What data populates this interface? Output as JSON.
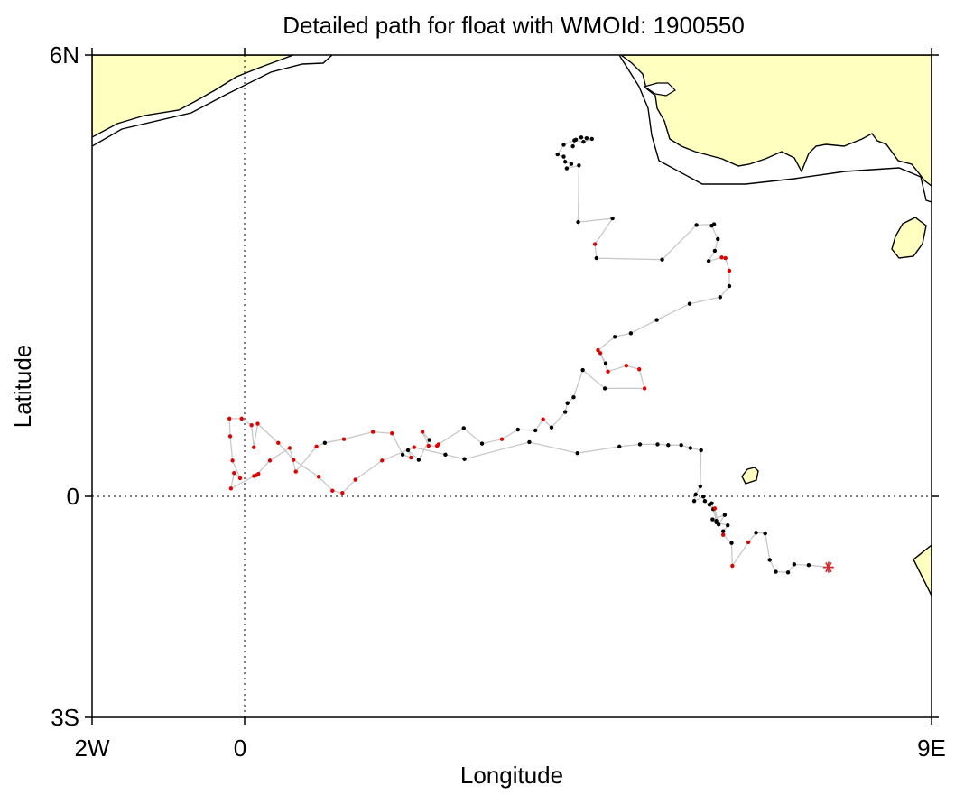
{
  "chart_data": {
    "type": "scatter",
    "title": "Detailed path for float with WMOId: 1900550",
    "xlabel": "Longitude",
    "ylabel": "Latitude",
    "xlim": [
      -2,
      9
    ],
    "ylim": [
      -3,
      6
    ],
    "x_ticks": [
      {
        "value": -2,
        "label": "2W"
      },
      {
        "value": 0,
        "label": "0"
      },
      {
        "value": 9,
        "label": "9E"
      }
    ],
    "y_ticks": [
      {
        "value": 6,
        "label": "6N"
      },
      {
        "value": 0,
        "label": "0"
      },
      {
        "value": -3,
        "label": "3S"
      }
    ],
    "reference_lines": [
      {
        "axis": "x",
        "value": 0,
        "style": "dotted"
      },
      {
        "axis": "y",
        "value": 0,
        "style": "dotted"
      }
    ],
    "colors": {
      "land": "#ffffc0",
      "track": "#c8c8c8",
      "point_black": "#000000",
      "point_red": "#e00000",
      "last_position": "#d03030"
    },
    "last_position": {
      "lon": 7.65,
      "lat": -0.96,
      "marker": "asterisk"
    },
    "series": [
      {
        "lon": [
          4.3,
          4.34,
          4.41,
          4.48,
          4.55,
          4.44,
          4.32,
          4.18,
          4.1,
          4.18,
          4.2,
          4.28,
          4.22,
          4.38,
          4.37,
          4.82,
          4.59,
          4.61,
          5.47,
          5.92,
          6.15,
          6.12,
          6.2,
          6.16,
          6.08,
          6.25,
          6.3,
          6.35,
          6.35,
          6.23,
          5.83,
          5.4,
          5.06,
          4.85,
          4.63,
          4.73,
          4.66,
          4.76,
          5,
          5.17,
          5.24,
          4.72,
          4.43,
          4.31,
          4.23,
          4.2,
          4.02,
          3.91,
          3.81,
          3.58,
          3.37,
          3.11,
          2.87,
          2.54,
          2.52,
          2.41,
          2.33,
          2.42,
          2.28,
          2.14,
          2.18,
          2.07,
          1.93,
          1.68,
          1.3,
          1.05,
          0.94,
          0.67,
          0.59,
          0.33,
          0.15,
          0.12,
          0.18,
          -0.18,
          -0.14,
          -0.06,
          -0.16,
          -0.19,
          -0.2,
          -0.04,
          0.09,
          0.12,
          0.17,
          0.44,
          0.64,
          0.97,
          1.15,
          1.28,
          1.45,
          1.8,
          2.22,
          2.63,
          2.88,
          3.73,
          4.36,
          4.91,
          5.18,
          5.41,
          5.55,
          5.72,
          5.84,
          5.98,
          5.97,
          5.91,
          5.89,
          6.01,
          6.03,
          6.09,
          6.14,
          6.12,
          6.18,
          6.16,
          6.21,
          6.29,
          6.13,
          6.18,
          6.33,
          6.27,
          6.27,
          6.38,
          6.39,
          6.6,
          6.7,
          6.82,
          6.88,
          6.96,
          7.12,
          7.2,
          7.39,
          7.65
        ],
        "lat": [
          4.76,
          4.85,
          4.88,
          4.87,
          4.86,
          4.82,
          4.84,
          4.78,
          4.65,
          4.62,
          4.55,
          4.52,
          4.46,
          4.5,
          3.73,
          3.78,
          3.43,
          3.24,
          3.22,
          3.69,
          3.7,
          3.68,
          3.5,
          3.34,
          3.2,
          3.25,
          3.24,
          3.07,
          2.86,
          2.71,
          2.62,
          2.4,
          2.22,
          2.17,
          1.99,
          1.81,
          1.95,
          1.7,
          1.78,
          1.73,
          1.47,
          1.47,
          1.72,
          1.35,
          1.27,
          1.15,
          0.94,
          1.05,
          0.9,
          0.91,
          0.78,
          0.72,
          0.93,
          0.71,
          0.69,
          0.69,
          0.88,
          0.77,
          0.5,
          0.63,
          0.53,
          0.57,
          0.86,
          0.88,
          0.78,
          0.73,
          0.68,
          0.34,
          0.66,
          0.49,
          0.29,
          0.28,
          0.31,
          0.11,
          0.32,
          0.25,
          0.49,
          0.82,
          1.06,
          1.06,
          0.97,
          0.67,
          0.99,
          0.73,
          0.5,
          0.27,
          0.08,
          0.05,
          0.23,
          0.49,
          0.67,
          0.57,
          0.51,
          0.74,
          0.59,
          0.68,
          0.71,
          0.71,
          0.7,
          0.7,
          0.66,
          0.63,
          0.14,
          0.03,
          -0.06,
          0,
          -0.06,
          -0.11,
          -0.17,
          -0.09,
          -0.33,
          -0.16,
          -0.38,
          -0.25,
          -0.31,
          -0.35,
          -0.39,
          -0.47,
          -0.52,
          -0.63,
          -0.94,
          -0.62,
          -0.49,
          -0.5,
          -0.86,
          -1.02,
          -1.03,
          -0.92,
          -0.93,
          -0.96
        ],
        "marker_color": [
          "black",
          "black",
          "black",
          "black",
          "black",
          "black",
          "black",
          "black",
          "black",
          "black",
          "black",
          "black",
          "black",
          "black",
          "black",
          "black",
          "red",
          "black",
          "black",
          "black",
          "black",
          "black",
          "black",
          "black",
          "black",
          "red",
          "red",
          "red",
          "black",
          "black",
          "black",
          "black",
          "black",
          "black",
          "red",
          "black",
          "red",
          "red",
          "red",
          "red",
          "red",
          "black",
          "black",
          "black",
          "black",
          "black",
          "black",
          "red",
          "black",
          "black",
          "red",
          "black",
          "black",
          "red",
          "red",
          "red",
          "red",
          "black",
          "black",
          "black",
          "red",
          "black",
          "red",
          "red",
          "red",
          "black",
          "red",
          "red",
          "red",
          "red",
          "red",
          "red",
          "red",
          "red",
          "red",
          "red",
          "red",
          "red",
          "red",
          "red",
          "red",
          "red",
          "red",
          "red",
          "red",
          "red",
          "red",
          "red",
          "red",
          "red",
          "red",
          "black",
          "black",
          "black",
          "black",
          "black",
          "black",
          "black",
          "black",
          "black",
          "black",
          "black",
          "black",
          "black",
          "black",
          "black",
          "black",
          "black",
          "black",
          "black",
          "black",
          "red",
          "black",
          "black",
          "black",
          "black",
          "black",
          "black",
          "red",
          "black",
          "red",
          "red",
          "black",
          "black",
          "black",
          "black",
          "black",
          "black",
          "black",
          "black",
          "black",
          "black"
        ]
      }
    ]
  }
}
